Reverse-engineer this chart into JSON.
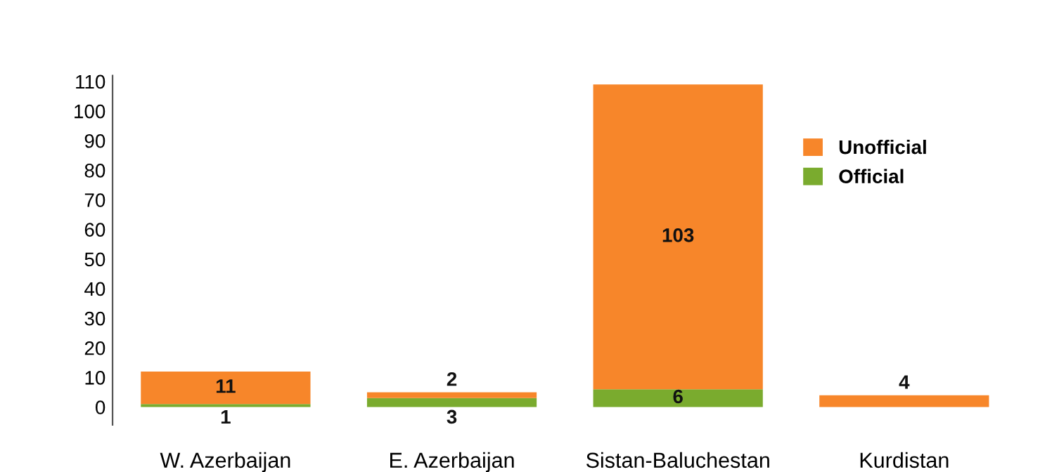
{
  "chart_data": {
    "type": "bar",
    "stacked": true,
    "categories": [
      "W. Azerbaijan",
      "E. Azerbaijan",
      "Sistan-Baluchestan",
      "Kurdistan"
    ],
    "series": [
      {
        "name": "Official",
        "color": "#7aab2e",
        "values": [
          1,
          3,
          6,
          0
        ],
        "value_labels": [
          "1",
          "3",
          "6",
          null
        ]
      },
      {
        "name": "Unofficial",
        "color": "#f7862a",
        "values": [
          11,
          2,
          103,
          4
        ],
        "value_labels": [
          "11",
          "2",
          "103",
          "4"
        ]
      }
    ],
    "ylim": [
      -6,
      112
    ],
    "yticks": [
      0,
      10,
      20,
      30,
      40,
      50,
      60,
      70,
      80,
      90,
      100,
      110
    ],
    "grid": false,
    "legend": "top right"
  }
}
